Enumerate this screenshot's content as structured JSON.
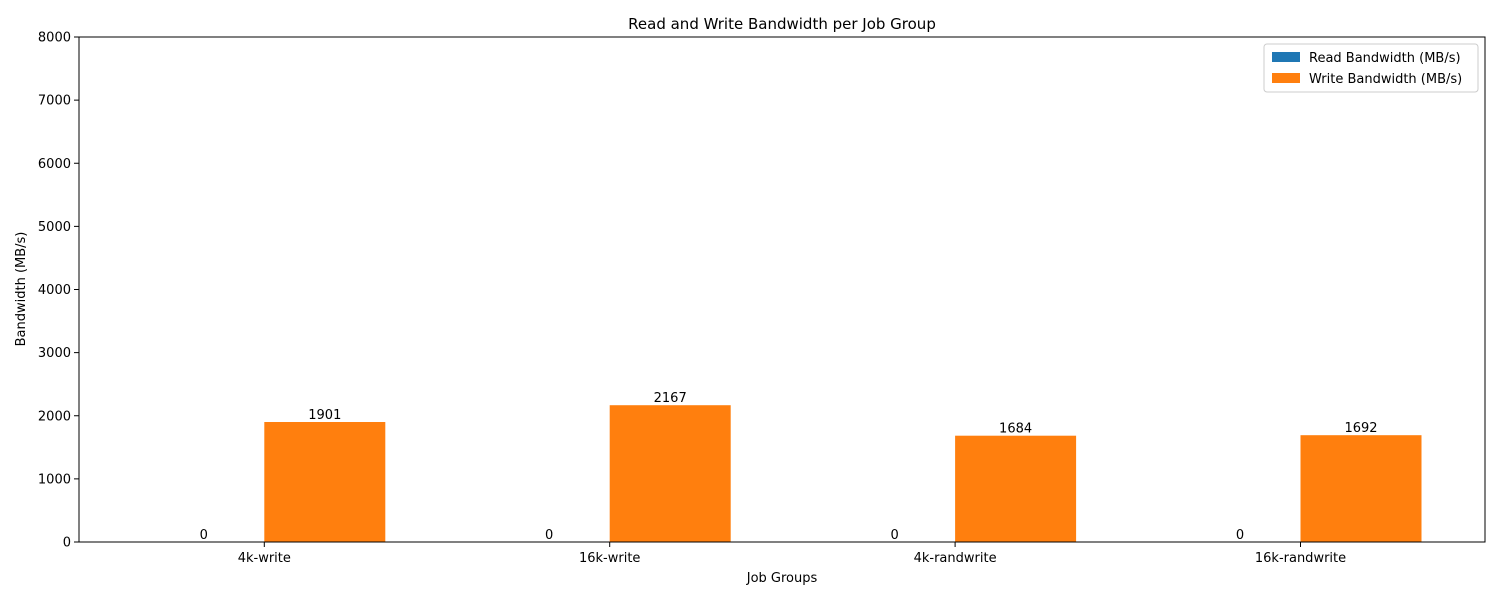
{
  "chart_data": {
    "type": "bar",
    "title": "Read and Write Bandwidth per Job Group",
    "xlabel": "Job Groups",
    "ylabel": "Bandwidth (MB/s)",
    "categories": [
      "4k-write",
      "16k-write",
      "4k-randwrite",
      "16k-randwrite"
    ],
    "series": [
      {
        "name": "Read Bandwidth (MB/s)",
        "values": [
          0,
          0,
          0,
          0
        ],
        "color": "#1f77b4"
      },
      {
        "name": "Write Bandwidth (MB/s)",
        "values": [
          1901,
          2167,
          1684,
          1692
        ],
        "color": "#ff7f0e"
      }
    ],
    "ylim": [
      0,
      8000
    ],
    "yticks": [
      0,
      1000,
      2000,
      3000,
      4000,
      5000,
      6000,
      7000,
      8000
    ],
    "grid": false,
    "legend_position": "top-right"
  }
}
